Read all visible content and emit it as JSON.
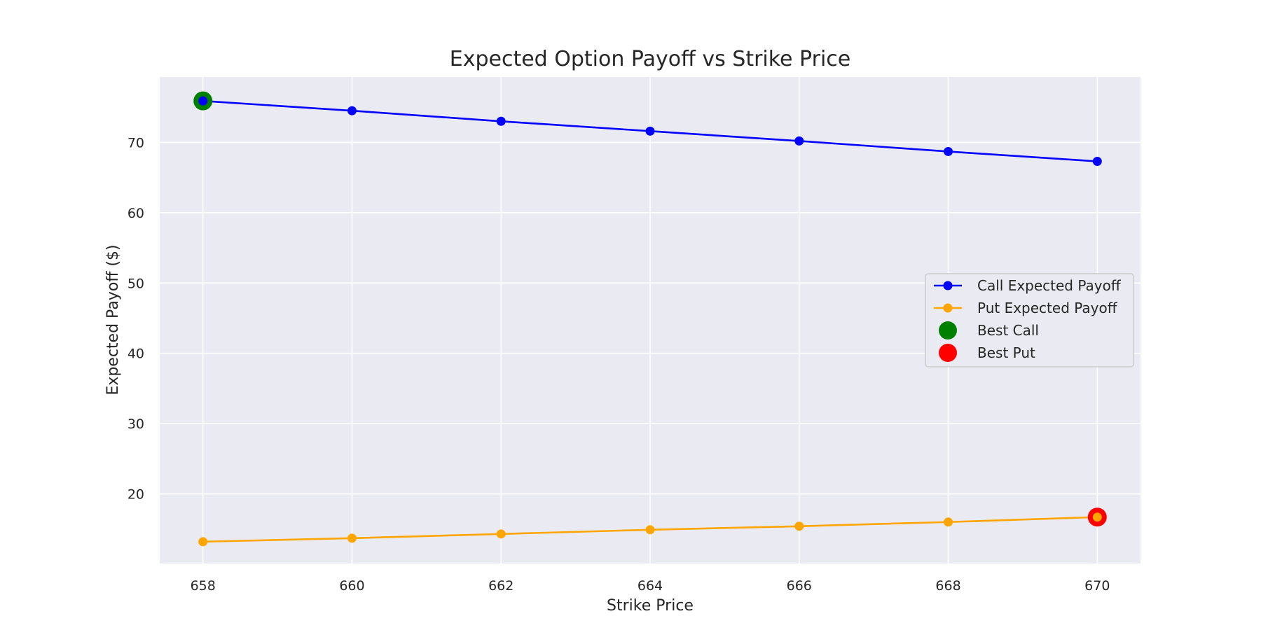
{
  "chart_data": {
    "type": "line",
    "title": "Expected Option Payoff vs Strike Price",
    "xlabel": "Strike Price",
    "ylabel": "Expected Payoff ($)",
    "x": [
      658,
      660,
      662,
      664,
      666,
      668,
      670
    ],
    "xlim": [
      657.42,
      670.58
    ],
    "ylim": [
      10.1,
      79.3
    ],
    "xticks": [
      658,
      660,
      662,
      664,
      666,
      668,
      670
    ],
    "yticks": [
      20,
      30,
      40,
      50,
      60,
      70
    ],
    "grid": true,
    "legend_position": "center-right",
    "series": [
      {
        "name": "Call Expected Payoff",
        "color": "#0000ff",
        "values": [
          75.9,
          74.5,
          73.0,
          71.6,
          70.2,
          68.7,
          67.3
        ]
      },
      {
        "name": "Put Expected Payoff",
        "color": "#ffa500",
        "values": [
          13.2,
          13.7,
          14.3,
          14.9,
          15.4,
          16.0,
          16.7
        ]
      }
    ],
    "highlights": [
      {
        "name": "Best Call",
        "color": "#008000",
        "x": 658,
        "y": 75.9
      },
      {
        "name": "Best Put",
        "color": "#ff0000",
        "x": 670,
        "y": 16.7
      }
    ]
  }
}
